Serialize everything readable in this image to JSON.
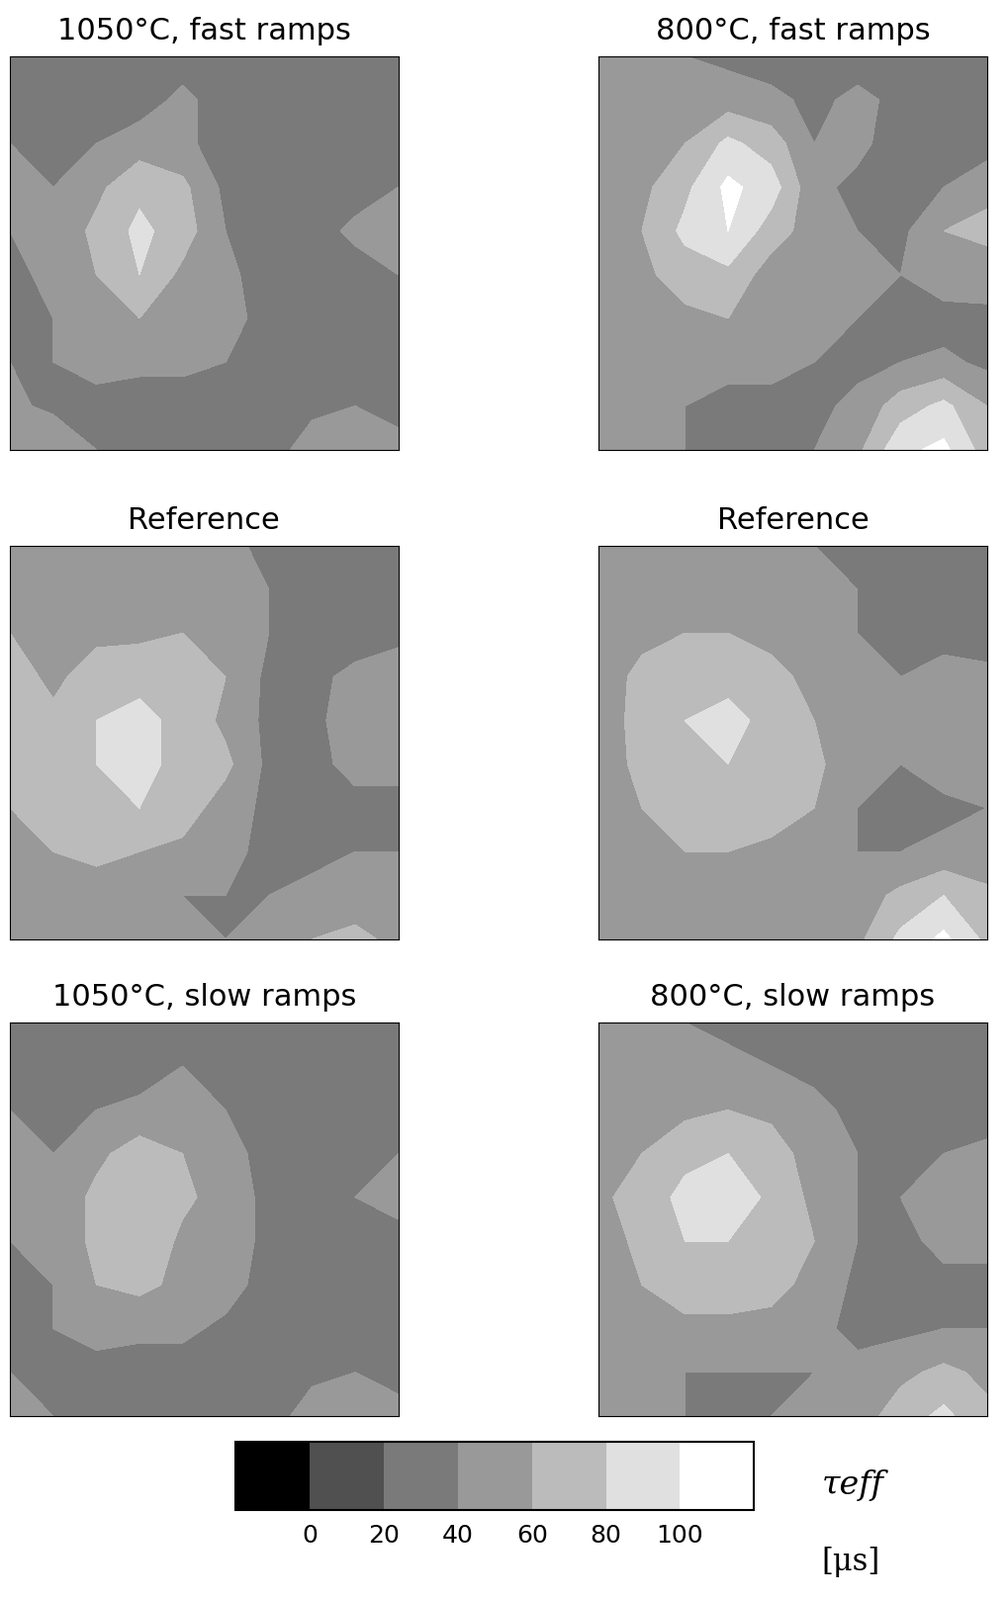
{
  "chart_data": {
    "type": "heatmap",
    "tick_labels": false,
    "maps": [
      {
        "title": "1050°C, fast ramps",
        "cells": [
          [
            30,
            30,
            30,
            30,
            30,
            30,
            30,
            30,
            30,
            30
          ],
          [
            35,
            30,
            30,
            30,
            45,
            30,
            30,
            30,
            30,
            30
          ],
          [
            40,
            35,
            40,
            50,
            45,
            30,
            30,
            30,
            30,
            30
          ],
          [
            45,
            40,
            55,
            75,
            65,
            35,
            30,
            30,
            30,
            40
          ],
          [
            40,
            45,
            65,
            85,
            70,
            40,
            30,
            30,
            45,
            50
          ],
          [
            35,
            45,
            60,
            80,
            55,
            45,
            30,
            30,
            30,
            40
          ],
          [
            30,
            40,
            55,
            60,
            50,
            50,
            30,
            30,
            30,
            30
          ],
          [
            40,
            40,
            45,
            45,
            45,
            40,
            30,
            30,
            30,
            30
          ],
          [
            45,
            35,
            35,
            30,
            30,
            30,
            30,
            35,
            40,
            35
          ],
          [
            50,
            60,
            40,
            30,
            30,
            30,
            30,
            50,
            50,
            45
          ]
        ]
      },
      {
        "title": "800°C, fast ramps",
        "cells": [
          [
            40,
            45,
            40,
            35,
            30,
            30,
            30,
            30,
            30,
            30
          ],
          [
            50,
            55,
            60,
            50,
            45,
            35,
            45,
            35,
            30,
            30
          ],
          [
            55,
            50,
            60,
            85,
            70,
            40,
            45,
            30,
            30,
            30
          ],
          [
            60,
            55,
            75,
            105,
            90,
            45,
            35,
            30,
            40,
            55
          ],
          [
            55,
            60,
            85,
            100,
            70,
            50,
            40,
            35,
            60,
            65
          ],
          [
            45,
            55,
            70,
            75,
            50,
            55,
            45,
            40,
            55,
            50
          ],
          [
            40,
            45,
            55,
            60,
            55,
            55,
            40,
            30,
            30,
            35
          ],
          [
            45,
            40,
            45,
            45,
            45,
            40,
            35,
            40,
            45,
            35
          ],
          [
            50,
            45,
            40,
            35,
            35,
            35,
            45,
            70,
            85,
            60
          ],
          [
            55,
            50,
            40,
            35,
            35,
            40,
            55,
            95,
            105,
            70
          ]
        ]
      },
      {
        "title": "Reference",
        "cells": [
          [
            55,
            50,
            40,
            45,
            55,
            45,
            35,
            35,
            30,
            30
          ],
          [
            60,
            45,
            40,
            45,
            55,
            50,
            40,
            35,
            30,
            30
          ],
          [
            60,
            50,
            55,
            55,
            60,
            55,
            40,
            35,
            30,
            35
          ],
          [
            70,
            55,
            70,
            75,
            70,
            60,
            35,
            35,
            45,
            50
          ],
          [
            70,
            65,
            80,
            85,
            75,
            55,
            35,
            35,
            50,
            55
          ],
          [
            65,
            70,
            80,
            85,
            75,
            65,
            35,
            35,
            45,
            45
          ],
          [
            60,
            65,
            75,
            80,
            70,
            50,
            35,
            35,
            35,
            35
          ],
          [
            55,
            60,
            65,
            60,
            55,
            45,
            35,
            35,
            40,
            40
          ],
          [
            55,
            55,
            50,
            45,
            40,
            40,
            40,
            45,
            50,
            45
          ],
          [
            55,
            55,
            50,
            45,
            45,
            40,
            45,
            60,
            65,
            55
          ]
        ]
      },
      {
        "title": "Reference",
        "cells": [
          [
            50,
            45,
            50,
            45,
            40,
            40,
            35,
            35,
            30,
            30
          ],
          [
            55,
            50,
            55,
            50,
            45,
            45,
            40,
            30,
            30,
            30
          ],
          [
            55,
            55,
            60,
            60,
            55,
            50,
            40,
            30,
            30,
            30
          ],
          [
            50,
            65,
            75,
            75,
            65,
            55,
            45,
            40,
            50,
            45
          ],
          [
            45,
            70,
            80,
            85,
            75,
            60,
            45,
            45,
            55,
            60
          ],
          [
            40,
            70,
            75,
            80,
            70,
            65,
            45,
            40,
            50,
            45
          ],
          [
            40,
            60,
            70,
            75,
            70,
            60,
            40,
            35,
            35,
            40
          ],
          [
            45,
            55,
            60,
            60,
            55,
            50,
            40,
            40,
            45,
            45
          ],
          [
            55,
            50,
            45,
            45,
            45,
            45,
            50,
            65,
            80,
            65
          ],
          [
            55,
            50,
            45,
            45,
            45,
            45,
            55,
            85,
            105,
            75
          ]
        ]
      },
      {
        "title": "1050°C, slow ramps",
        "cells": [
          [
            30,
            30,
            30,
            30,
            30,
            30,
            30,
            30,
            30,
            30
          ],
          [
            35,
            30,
            35,
            30,
            40,
            30,
            35,
            30,
            30,
            30
          ],
          [
            40,
            35,
            40,
            45,
            45,
            40,
            35,
            30,
            30,
            30
          ],
          [
            45,
            40,
            55,
            70,
            60,
            45,
            35,
            30,
            35,
            40
          ],
          [
            45,
            45,
            65,
            80,
            65,
            50,
            35,
            30,
            40,
            45
          ],
          [
            40,
            45,
            65,
            80,
            55,
            50,
            35,
            30,
            30,
            35
          ],
          [
            35,
            40,
            60,
            65,
            55,
            50,
            30,
            30,
            30,
            30
          ],
          [
            40,
            40,
            45,
            45,
            45,
            35,
            30,
            30,
            30,
            30
          ],
          [
            40,
            35,
            35,
            30,
            30,
            30,
            30,
            35,
            40,
            35
          ],
          [
            45,
            40,
            35,
            30,
            30,
            30,
            30,
            50,
            55,
            45
          ]
        ]
      },
      {
        "title": "800°C, slow ramps",
        "cells": [
          [
            40,
            40,
            40,
            35,
            30,
            30,
            30,
            30,
            30,
            30
          ],
          [
            50,
            45,
            45,
            45,
            40,
            35,
            35,
            30,
            30,
            30
          ],
          [
            55,
            50,
            55,
            60,
            55,
            45,
            35,
            30,
            30,
            30
          ],
          [
            55,
            60,
            75,
            80,
            70,
            50,
            40,
            35,
            40,
            45
          ],
          [
            55,
            70,
            85,
            95,
            75,
            55,
            40,
            40,
            50,
            55
          ],
          [
            50,
            65,
            80,
            80,
            70,
            60,
            40,
            35,
            45,
            45
          ],
          [
            45,
            60,
            70,
            70,
            65,
            55,
            35,
            30,
            35,
            35
          ],
          [
            45,
            50,
            55,
            55,
            55,
            45,
            35,
            35,
            40,
            40
          ],
          [
            50,
            45,
            40,
            40,
            40,
            40,
            45,
            55,
            65,
            55
          ],
          [
            50,
            45,
            40,
            40,
            40,
            45,
            50,
            70,
            85,
            65
          ]
        ]
      }
    ],
    "colorbar": {
      "range": [
        -20,
        120
      ],
      "ticks": [
        0,
        20,
        40,
        60,
        80,
        100
      ],
      "levels": [
        -20,
        0,
        20,
        40,
        60,
        80,
        100,
        120
      ],
      "colors": [
        "#000000",
        "#505050",
        "#7a7a7a",
        "#999999",
        "#bbbbbb",
        "#e0e0e0",
        "#ffffff"
      ],
      "label": "τeff",
      "unit": "[μs]"
    }
  }
}
